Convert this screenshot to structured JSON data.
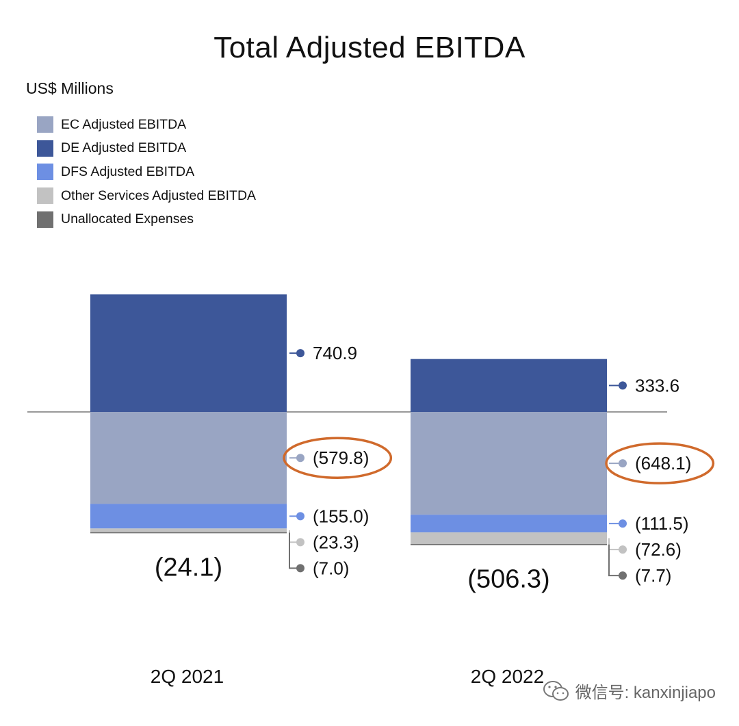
{
  "chart_data": {
    "type": "bar",
    "title": "Total Adjusted EBITDA",
    "subtitle": "US$ Millions",
    "categories": [
      "2Q 2021",
      "2Q 2022"
    ],
    "series": [
      {
        "name": "EC Adjusted EBITDA",
        "values": [
          -579.8,
          -648.1
        ],
        "labels": [
          "(579.8)",
          "(648.1)"
        ],
        "color": "#99a5c3"
      },
      {
        "name": "DE Adjusted EBITDA",
        "values": [
          740.9,
          333.6
        ],
        "labels": [
          "740.9",
          "333.6"
        ],
        "color": "#3d5799"
      },
      {
        "name": "DFS Adjusted EBITDA",
        "values": [
          -155.0,
          -111.5
        ],
        "labels": [
          "(155.0)",
          "(111.5)"
        ],
        "color": "#6d8fe3"
      },
      {
        "name": "Other Services Adjusted EBITDA",
        "values": [
          -23.3,
          -72.6
        ],
        "labels": [
          "(23.3)",
          "(72.6)"
        ],
        "color": "#c2c2c2"
      },
      {
        "name": "Unallocated Expenses",
        "values": [
          -7.0,
          -7.7
        ],
        "labels": [
          "(7.0)",
          "(7.7)"
        ],
        "color": "#707070"
      }
    ],
    "totals": [
      -24.1,
      -506.3
    ],
    "total_labels": [
      "(24.1)",
      "(506.3)"
    ],
    "highlighted_series": "EC Adjusted EBITDA",
    "highlight_color": "#d06a2c",
    "stacked": true,
    "legend_position": "top-left"
  },
  "watermark": {
    "text": "微信号: kanxinjiapo",
    "icon": "wechat-icon"
  }
}
